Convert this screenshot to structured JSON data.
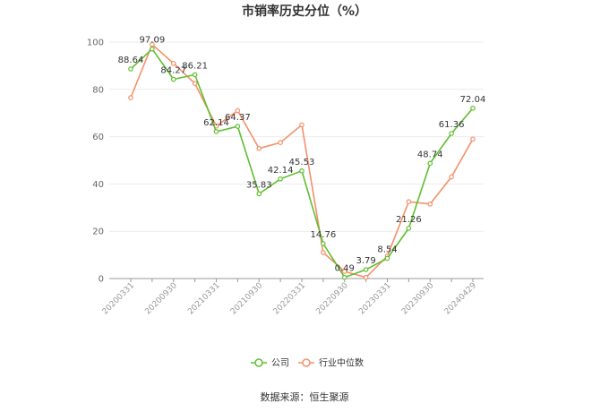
{
  "chart_data": {
    "type": "line",
    "title": "市销率历史分位（%）",
    "ylim": [
      0,
      100
    ],
    "yticks": [
      0,
      20,
      40,
      60,
      80,
      100
    ],
    "xtick_labels": [
      "20200331",
      "20200930",
      "20210331",
      "20210930",
      "20220331",
      "20220930",
      "20230331",
      "20230930",
      "20240429"
    ],
    "x": [
      "20200331",
      "20200630",
      "20200930",
      "20201231",
      "20210331",
      "20210630",
      "20210930",
      "20211231",
      "20220331",
      "20220630",
      "20220930",
      "20221231",
      "20230331",
      "20230630",
      "20230930",
      "20231231",
      "20240429"
    ],
    "series": [
      {
        "name": "公司",
        "color": "#5fbf2f",
        "values": [
          88.64,
          97.09,
          84.27,
          86.21,
          62.14,
          64.37,
          35.83,
          42.14,
          45.53,
          14.76,
          0.49,
          3.79,
          8.54,
          21.26,
          48.74,
          61.36,
          72.04
        ],
        "labels": [
          "88.64",
          "97.09",
          "84.27",
          "86.21",
          "62.14",
          "64.37",
          "35.83",
          "42.14",
          "45.53",
          "14.76",
          "0.49",
          "3.79",
          "8.54",
          "21.26",
          "48.74",
          "61.36",
          "72.04"
        ]
      },
      {
        "name": "行业中位数",
        "color": "#f4906a",
        "values": [
          76.5,
          99.0,
          91.0,
          82.5,
          64.5,
          71.0,
          55.0,
          57.5,
          65.0,
          11.0,
          3.0,
          0.5,
          9.5,
          32.5,
          31.5,
          43.0,
          59.0
        ]
      }
    ],
    "legend_position": "bottom",
    "grid": true,
    "source": "数据来源：恒生聚源"
  }
}
